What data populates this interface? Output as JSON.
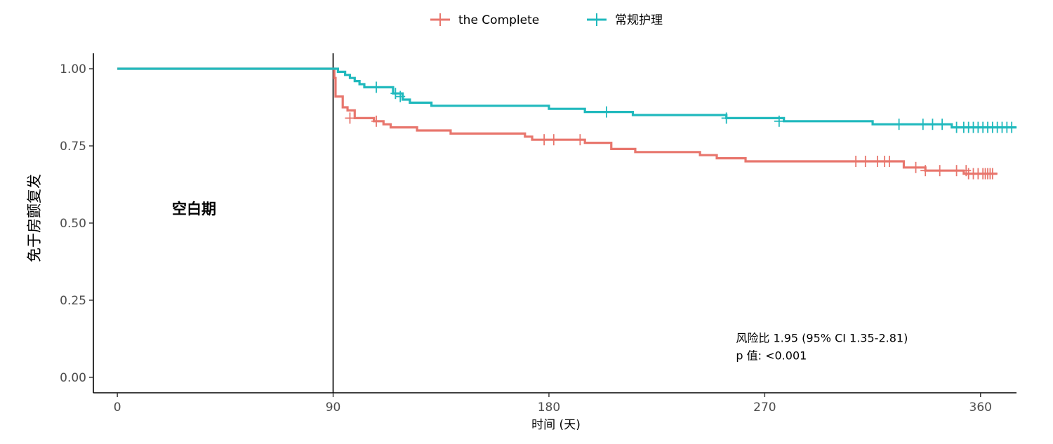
{
  "chart_data": {
    "type": "line",
    "title": "",
    "xlabel": "时间 (天)",
    "ylabel": "免于房颤复发",
    "xlim": [
      -10,
      375
    ],
    "ylim": [
      -0.05,
      1.05
    ],
    "xticks": [
      0,
      90,
      180,
      270,
      360
    ],
    "xtick_labels": [
      "0",
      "90",
      "180",
      "270",
      "360"
    ],
    "yticks": [
      0,
      0.25,
      0.5,
      0.75,
      1.0
    ],
    "ytick_labels": [
      "0.00",
      "0.25",
      "0.50",
      "0.75",
      "1.00"
    ],
    "grid": false,
    "legend_position": "top",
    "vline_x": 90,
    "region_label": {
      "text": "空白期",
      "x": 32,
      "y": 0.53
    },
    "annotations": [
      {
        "text": "风险比 1.95 (95% CI 1.35-2.81)",
        "x": 258,
        "y": 0.115
      },
      {
        "text": "p 值: <0.001",
        "x": 258,
        "y": 0.058
      }
    ],
    "series": [
      {
        "name": "the Complete",
        "color": "#e8766d",
        "steps": [
          [
            0,
            1.0
          ],
          [
            90,
            1.0
          ],
          [
            90.5,
            0.97
          ],
          [
            91,
            0.91
          ],
          [
            94,
            0.875
          ],
          [
            96,
            0.865
          ],
          [
            99,
            0.84
          ],
          [
            107,
            0.83
          ],
          [
            111,
            0.82
          ],
          [
            114,
            0.81
          ],
          [
            125,
            0.8
          ],
          [
            139,
            0.79
          ],
          [
            170,
            0.78
          ],
          [
            173,
            0.77
          ],
          [
            195,
            0.76
          ],
          [
            206,
            0.74
          ],
          [
            216,
            0.73
          ],
          [
            243,
            0.72
          ],
          [
            250,
            0.71
          ],
          [
            262,
            0.7
          ],
          [
            328,
            0.68
          ],
          [
            337,
            0.67
          ],
          [
            353,
            0.66
          ],
          [
            367,
            0.66
          ]
        ],
        "censored": [
          [
            97,
            0.84
          ],
          [
            108,
            0.83
          ],
          [
            178,
            0.77
          ],
          [
            182,
            0.77
          ],
          [
            193,
            0.77
          ],
          [
            308,
            0.7
          ],
          [
            312,
            0.7
          ],
          [
            317,
            0.7
          ],
          [
            320,
            0.7
          ],
          [
            322,
            0.7
          ],
          [
            333,
            0.68
          ],
          [
            337,
            0.67
          ],
          [
            343,
            0.67
          ],
          [
            350,
            0.67
          ],
          [
            354,
            0.67
          ],
          [
            355,
            0.66
          ],
          [
            357,
            0.66
          ],
          [
            359,
            0.66
          ],
          [
            361,
            0.66
          ],
          [
            362,
            0.66
          ],
          [
            363,
            0.66
          ],
          [
            364,
            0.66
          ],
          [
            365,
            0.66
          ]
        ]
      },
      {
        "name": "常规护理",
        "color": "#20b9bd",
        "steps": [
          [
            0,
            1.0
          ],
          [
            90,
            1.0
          ],
          [
            92,
            0.99
          ],
          [
            95,
            0.98
          ],
          [
            97,
            0.97
          ],
          [
            99,
            0.96
          ],
          [
            101,
            0.95
          ],
          [
            103,
            0.94
          ],
          [
            115,
            0.92
          ],
          [
            119,
            0.9
          ],
          [
            122,
            0.89
          ],
          [
            131,
            0.88
          ],
          [
            180,
            0.87
          ],
          [
            195,
            0.86
          ],
          [
            215,
            0.85
          ],
          [
            254,
            0.84
          ],
          [
            278,
            0.83
          ],
          [
            315,
            0.82
          ],
          [
            348,
            0.81
          ],
          [
            375,
            0.81
          ]
        ],
        "censored": [
          [
            108,
            0.94
          ],
          [
            116,
            0.92
          ],
          [
            118,
            0.91
          ],
          [
            204,
            0.86
          ],
          [
            254,
            0.84
          ],
          [
            276,
            0.83
          ],
          [
            326,
            0.82
          ],
          [
            336,
            0.82
          ],
          [
            340,
            0.82
          ],
          [
            344,
            0.82
          ],
          [
            350,
            0.81
          ],
          [
            353,
            0.81
          ],
          [
            355,
            0.81
          ],
          [
            357,
            0.81
          ],
          [
            359,
            0.81
          ],
          [
            361,
            0.81
          ],
          [
            363,
            0.81
          ],
          [
            365,
            0.81
          ],
          [
            367,
            0.81
          ],
          [
            369,
            0.81
          ],
          [
            371,
            0.81
          ],
          [
            373,
            0.81
          ]
        ]
      }
    ]
  }
}
